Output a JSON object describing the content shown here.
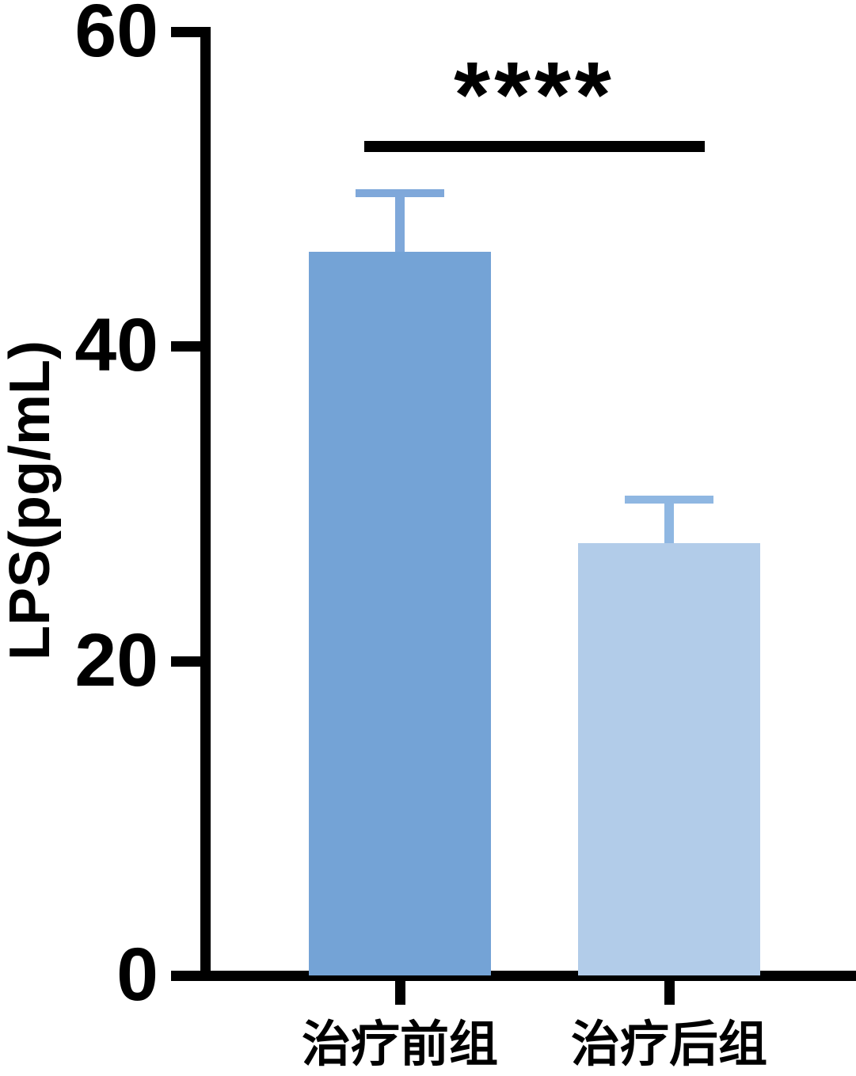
{
  "chart_data": {
    "type": "bar",
    "title": "",
    "xlabel": "",
    "ylabel": "LPS(pg/mL)",
    "categories": [
      "治疗前组",
      "治疗后组"
    ],
    "values": [
      46,
      27.5
    ],
    "errors": [
      4,
      3
    ],
    "error_type": "upper SD",
    "ylim": [
      0,
      60
    ],
    "yticks": [
      0,
      20,
      40,
      60
    ],
    "grid": false,
    "legend": null,
    "bar_colors": [
      "#74a3d6",
      "#b2cce9"
    ],
    "error_colors": [
      "#7fa8da",
      "#8fb7e2"
    ],
    "axis_color": "#000000",
    "significance": {
      "label": "****",
      "between": [
        "治疗前组",
        "治疗后组"
      ]
    }
  }
}
